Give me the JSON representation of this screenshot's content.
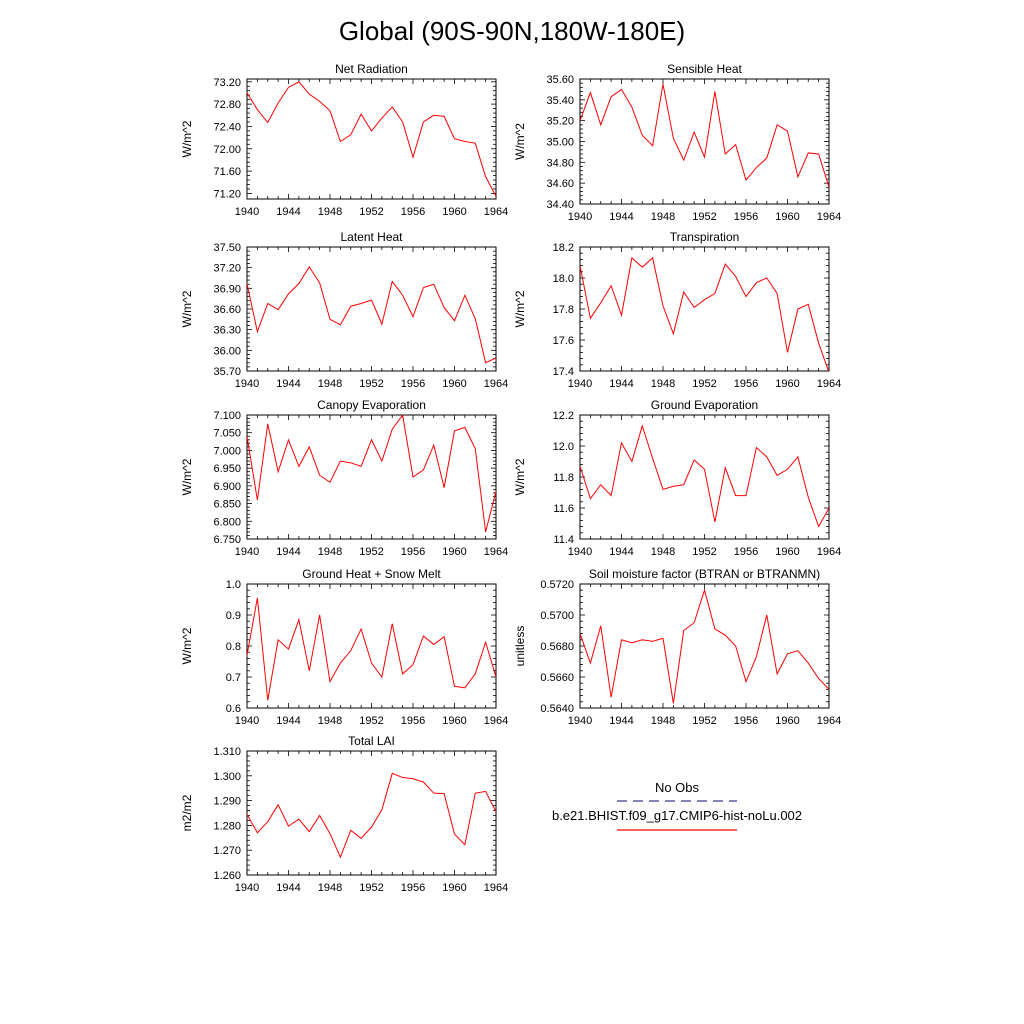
{
  "title": "Global (90S-90N,180W-180E)",
  "colors": {
    "series": "#ff0000",
    "obs": "#3a3a8c",
    "axis": "#000000"
  },
  "legend": {
    "obs_label": "No Obs",
    "case_label": "b.e21.BHIST.f09_g17.CMIP6-hist-noLu.002"
  },
  "chart_data": [
    {
      "type": "line",
      "title": "Net Radiation",
      "ylabel": "W/m^2",
      "xlim": [
        1940,
        1964
      ],
      "ylim": [
        71.1,
        73.25
      ],
      "xticks": [
        "1940",
        "1944",
        "1948",
        "1952",
        "1956",
        "1960",
        "1964"
      ],
      "yticks": [
        "71.20",
        "71.60",
        "72.00",
        "72.40",
        "72.80",
        "73.20"
      ],
      "x": [
        1940,
        1941,
        1942,
        1943,
        1944,
        1945,
        1946,
        1947,
        1948,
        1949,
        1950,
        1951,
        1952,
        1953,
        1954,
        1955,
        1956,
        1957,
        1958,
        1959,
        1960,
        1961,
        1962,
        1963,
        1964
      ],
      "series": [
        {
          "values": [
            73.0,
            72.7,
            72.47,
            72.82,
            73.1,
            73.2,
            72.98,
            72.85,
            72.68,
            72.13,
            72.25,
            72.62,
            72.32,
            72.55,
            72.75,
            72.48,
            71.85,
            72.48,
            72.6,
            72.58,
            72.18,
            72.13,
            72.1,
            71.5,
            71.15
          ]
        }
      ]
    },
    {
      "type": "line",
      "title": "Sensible Heat",
      "ylabel": "W/m^2",
      "xlim": [
        1940,
        1964
      ],
      "ylim": [
        34.4,
        35.6
      ],
      "xticks": [
        "1940",
        "1944",
        "1948",
        "1952",
        "1956",
        "1960",
        "1964"
      ],
      "yticks": [
        "34.40",
        "34.60",
        "34.80",
        "35.00",
        "35.20",
        "35.40",
        "35.60"
      ],
      "x": [
        1940,
        1941,
        1942,
        1943,
        1944,
        1945,
        1946,
        1947,
        1948,
        1949,
        1950,
        1951,
        1952,
        1953,
        1954,
        1955,
        1956,
        1957,
        1958,
        1959,
        1960,
        1961,
        1962,
        1963,
        1964
      ],
      "series": [
        {
          "values": [
            35.2,
            35.47,
            35.16,
            35.43,
            35.5,
            35.33,
            35.06,
            34.96,
            35.55,
            35.03,
            34.82,
            35.09,
            34.85,
            35.48,
            34.88,
            34.97,
            34.63,
            34.75,
            34.84,
            35.16,
            35.1,
            34.66,
            34.89,
            34.88,
            34.56
          ]
        }
      ]
    },
    {
      "type": "line",
      "title": "Latent Heat",
      "ylabel": "W/m^2",
      "xlim": [
        1940,
        1964
      ],
      "ylim": [
        35.7,
        37.5
      ],
      "xticks": [
        "1940",
        "1944",
        "1948",
        "1952",
        "1956",
        "1960",
        "1964"
      ],
      "yticks": [
        "35.70",
        "36.00",
        "36.30",
        "36.60",
        "36.90",
        "37.20",
        "37.50"
      ],
      "x": [
        1940,
        1941,
        1942,
        1943,
        1944,
        1945,
        1946,
        1947,
        1948,
        1949,
        1950,
        1951,
        1952,
        1953,
        1954,
        1955,
        1956,
        1957,
        1958,
        1959,
        1960,
        1961,
        1962,
        1963,
        1964
      ],
      "series": [
        {
          "values": [
            36.97,
            36.27,
            36.68,
            36.59,
            36.82,
            36.97,
            37.21,
            36.98,
            36.45,
            36.37,
            36.64,
            36.68,
            36.73,
            36.38,
            37.0,
            36.8,
            36.49,
            36.91,
            36.96,
            36.62,
            36.43,
            36.8,
            36.46,
            35.82,
            35.89
          ]
        }
      ]
    },
    {
      "type": "line",
      "title": "Transpiration",
      "ylabel": "W/m^2",
      "xlim": [
        1940,
        1964
      ],
      "ylim": [
        17.4,
        18.2
      ],
      "xticks": [
        "1940",
        "1944",
        "1948",
        "1952",
        "1956",
        "1960",
        "1964"
      ],
      "yticks": [
        "17.4",
        "17.6",
        "17.8",
        "18.0",
        "18.2"
      ],
      "x": [
        1940,
        1941,
        1942,
        1943,
        1944,
        1945,
        1946,
        1947,
        1948,
        1949,
        1950,
        1951,
        1952,
        1953,
        1954,
        1955,
        1956,
        1957,
        1958,
        1959,
        1960,
        1961,
        1962,
        1963,
        1964
      ],
      "series": [
        {
          "values": [
            18.08,
            17.74,
            17.84,
            17.95,
            17.76,
            18.13,
            18.07,
            18.13,
            17.82,
            17.64,
            17.91,
            17.81,
            17.86,
            17.9,
            18.09,
            18.01,
            17.88,
            17.97,
            18.0,
            17.9,
            17.52,
            17.8,
            17.83,
            17.58,
            17.39
          ]
        }
      ]
    },
    {
      "type": "line",
      "title": "Canopy Evaporation",
      "ylabel": "W/m^2",
      "xlim": [
        1940,
        1964
      ],
      "ylim": [
        6.75,
        7.1
      ],
      "xticks": [
        "1940",
        "1944",
        "1948",
        "1952",
        "1956",
        "1960",
        "1964"
      ],
      "yticks": [
        "6.750",
        "6.800",
        "6.850",
        "6.900",
        "6.950",
        "7.000",
        "7.050",
        "7.100"
      ],
      "x": [
        1940,
        1941,
        1942,
        1943,
        1944,
        1945,
        1946,
        1947,
        1948,
        1949,
        1950,
        1951,
        1952,
        1953,
        1954,
        1955,
        1956,
        1957,
        1958,
        1959,
        1960,
        1961,
        1962,
        1963,
        1964
      ],
      "series": [
        {
          "values": [
            7.04,
            6.86,
            7.075,
            6.94,
            7.03,
            6.955,
            7.01,
            6.93,
            6.91,
            6.97,
            6.965,
            6.955,
            7.03,
            6.97,
            7.06,
            7.1,
            6.925,
            6.945,
            7.015,
            6.895,
            7.055,
            7.065,
            7.005,
            6.77,
            6.885
          ]
        }
      ]
    },
    {
      "type": "line",
      "title": "Ground Evaporation",
      "ylabel": "W/m^2",
      "xlim": [
        1940,
        1964
      ],
      "ylim": [
        11.4,
        12.2
      ],
      "xticks": [
        "1940",
        "1944",
        "1948",
        "1952",
        "1956",
        "1960",
        "1964"
      ],
      "yticks": [
        "11.4",
        "11.6",
        "11.8",
        "12.0",
        "12.2"
      ],
      "x": [
        1940,
        1941,
        1942,
        1943,
        1944,
        1945,
        1946,
        1947,
        1948,
        1949,
        1950,
        1951,
        1952,
        1953,
        1954,
        1955,
        1956,
        1957,
        1958,
        1959,
        1960,
        1961,
        1962,
        1963,
        1964
      ],
      "series": [
        {
          "values": [
            11.87,
            11.66,
            11.75,
            11.68,
            12.02,
            11.9,
            12.13,
            11.92,
            11.72,
            11.74,
            11.75,
            11.91,
            11.85,
            11.51,
            11.86,
            11.68,
            11.68,
            11.99,
            11.93,
            11.81,
            11.85,
            11.93,
            11.67,
            11.48,
            11.6
          ]
        }
      ]
    },
    {
      "type": "line",
      "title": "Ground Heat + Snow Melt",
      "ylabel": "W/m^2",
      "xlim": [
        1940,
        1964
      ],
      "ylim": [
        0.6,
        1.0
      ],
      "xticks": [
        "1940",
        "1944",
        "1948",
        "1952",
        "1956",
        "1960",
        "1964"
      ],
      "yticks": [
        "0.6",
        "0.7",
        "0.8",
        "0.9",
        "1.0"
      ],
      "x": [
        1940,
        1941,
        1942,
        1943,
        1944,
        1945,
        1946,
        1947,
        1948,
        1949,
        1950,
        1951,
        1952,
        1953,
        1954,
        1955,
        1956,
        1957,
        1958,
        1959,
        1960,
        1961,
        1962,
        1963,
        1964
      ],
      "series": [
        {
          "values": [
            0.77,
            0.955,
            0.625,
            0.82,
            0.79,
            0.885,
            0.72,
            0.9,
            0.685,
            0.745,
            0.785,
            0.855,
            0.745,
            0.7,
            0.872,
            0.71,
            0.74,
            0.832,
            0.805,
            0.83,
            0.67,
            0.665,
            0.71,
            0.812,
            0.7
          ]
        }
      ]
    },
    {
      "type": "line",
      "title": "Soil moisture factor (BTRAN or BTRANMN)",
      "ylabel": "unitless",
      "xlim": [
        1940,
        1964
      ],
      "ylim": [
        0.564,
        0.572
      ],
      "xticks": [
        "1940",
        "1944",
        "1948",
        "1952",
        "1956",
        "1960",
        "1964"
      ],
      "yticks": [
        "0.5640",
        "0.5660",
        "0.5680",
        "0.5700",
        "0.5720"
      ],
      "x": [
        1940,
        1941,
        1942,
        1943,
        1944,
        1945,
        1946,
        1947,
        1948,
        1949,
        1950,
        1951,
        1952,
        1953,
        1954,
        1955,
        1956,
        1957,
        1958,
        1959,
        1960,
        1961,
        1962,
        1963,
        1964
      ],
      "series": [
        {
          "values": [
            0.5688,
            0.5669,
            0.5693,
            0.5647,
            0.5684,
            0.5682,
            0.5684,
            0.5683,
            0.5685,
            0.5643,
            0.569,
            0.5695,
            0.5716,
            0.5691,
            0.5687,
            0.568,
            0.5657,
            0.5673,
            0.57,
            0.5662,
            0.5675,
            0.5677,
            0.5669,
            0.5659,
            0.5652
          ]
        }
      ]
    },
    {
      "type": "line",
      "title": "Total LAI",
      "ylabel": "m2/m2",
      "xlim": [
        1940,
        1964
      ],
      "ylim": [
        1.26,
        1.31
      ],
      "xticks": [
        "1940",
        "1944",
        "1948",
        "1952",
        "1956",
        "1960",
        "1964"
      ],
      "yticks": [
        "1.260",
        "1.270",
        "1.280",
        "1.290",
        "1.300",
        "1.310"
      ],
      "x": [
        1940,
        1941,
        1942,
        1943,
        1944,
        1945,
        1946,
        1947,
        1948,
        1949,
        1950,
        1951,
        1952,
        1953,
        1954,
        1955,
        1956,
        1957,
        1958,
        1959,
        1960,
        1961,
        1962,
        1963,
        1964
      ],
      "series": [
        {
          "values": [
            1.2845,
            1.277,
            1.2815,
            1.2883,
            1.2797,
            1.2825,
            1.2775,
            1.284,
            1.2767,
            1.2672,
            1.278,
            1.2748,
            1.2793,
            1.2863,
            1.301,
            1.2993,
            1.2988,
            1.2975,
            1.293,
            1.2928,
            1.2765,
            1.2722,
            1.293,
            1.2937,
            1.2855
          ]
        }
      ]
    }
  ]
}
